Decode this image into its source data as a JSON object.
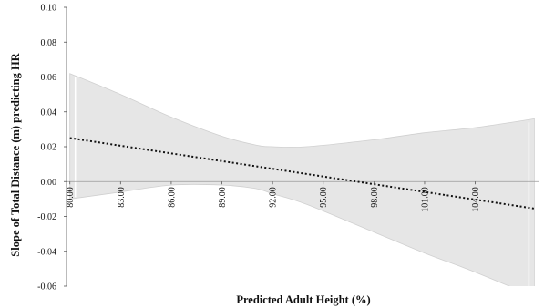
{
  "chart_data": {
    "type": "line",
    "title": "",
    "xlabel": "Predicted Adult Height (%)",
    "ylabel": "Slope of Total Distance (m) predicting HR",
    "xlim": [
      79.8,
      107.8
    ],
    "ylim": [
      -0.06,
      0.1
    ],
    "x_ticks": [
      "80.00",
      "83.00",
      "86.00",
      "89.00",
      "92.00",
      "95.00",
      "98.00",
      "101.00",
      "104.00"
    ],
    "x_tick_values": [
      80,
      83,
      86,
      89,
      92,
      95,
      98,
      101,
      104
    ],
    "y_ticks": [
      "0.10",
      "0.08",
      "0.06",
      "0.04",
      "0.02",
      "0.00",
      "-0.02",
      "-0.04",
      "-0.06"
    ],
    "y_tick_values": [
      0.1,
      0.08,
      0.06,
      0.04,
      0.02,
      0.0,
      -0.02,
      -0.04,
      -0.06
    ],
    "grid": false,
    "series": [
      {
        "style": "dotted",
        "color": "#111111",
        "x": [
          80.0,
          107.5
        ],
        "y": [
          0.025,
          -0.0155
        ]
      }
    ],
    "confidence_band": {
      "color": "#e6e6e6",
      "x": [
        80.0,
        83.0,
        86.0,
        89.0,
        91.0,
        92.0,
        94.0,
        98.0,
        101.0,
        104.0,
        107.5
      ],
      "upper": [
        0.062,
        0.05,
        0.037,
        0.026,
        0.021,
        0.02,
        0.02,
        0.024,
        0.028,
        0.031,
        0.036
      ],
      "lower": [
        -0.01,
        -0.006,
        -0.002,
        -0.002,
        -0.004,
        -0.007,
        -0.013,
        -0.029,
        -0.041,
        -0.052,
        -0.066
      ]
    },
    "zero_line": true
  }
}
